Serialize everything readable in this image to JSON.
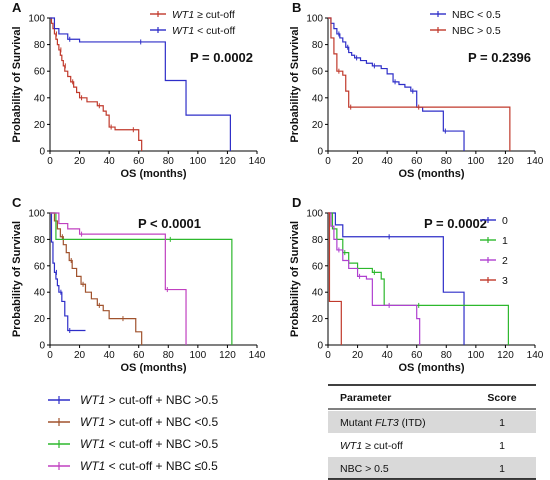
{
  "panels": [
    {
      "label": "A",
      "pvalue": "P = 0.0002",
      "xlabel": "OS (months)",
      "ylabel": "Probability of Survival",
      "xticks": [
        0,
        20,
        40,
        60,
        80,
        100,
        120,
        140
      ],
      "yticks": [
        0,
        20,
        40,
        60,
        80,
        100
      ],
      "legend": [
        {
          "pre": "WT1",
          "post": " ≥ cut-off",
          "color": "#C0392B"
        },
        {
          "pre": "WT1",
          "post": " < cut-off",
          "color": "#2E2EC8"
        }
      ]
    },
    {
      "label": "B",
      "pvalue": "P = 0.2396",
      "xlabel": "OS (months)",
      "ylabel": "Probability of Survival",
      "xticks": [
        0,
        20,
        40,
        60,
        80,
        100,
        120,
        140
      ],
      "yticks": [
        0,
        20,
        40,
        60,
        80,
        100
      ],
      "legend": [
        {
          "pre": "",
          "post": "NBC < 0.5",
          "color": "#2E2EC8"
        },
        {
          "pre": "",
          "post": "NBC > 0.5",
          "color": "#C0392B"
        }
      ]
    },
    {
      "label": "C",
      "pvalue": "P < 0.0001",
      "xlabel": "OS (months)",
      "ylabel": "Probability of Survival",
      "xticks": [
        0,
        20,
        40,
        60,
        80,
        100,
        120,
        140
      ],
      "yticks": [
        0,
        20,
        40,
        60,
        80,
        100
      ]
    },
    {
      "label": "D",
      "pvalue": "P = 0.0002",
      "xlabel": "OS (months)",
      "ylabel": "Probability of Survival",
      "xticks": [
        0,
        20,
        40,
        60,
        80,
        100,
        120,
        140
      ],
      "yticks": [
        0,
        20,
        40,
        60,
        80,
        100
      ],
      "legend": [
        {
          "pre": "",
          "post": "0",
          "color": "#2E2EC8"
        },
        {
          "pre": "",
          "post": "1",
          "color": "#2DB82D"
        },
        {
          "pre": "",
          "post": "2",
          "color": "#B040D0"
        },
        {
          "pre": "",
          "post": "3",
          "color": "#C0392B"
        }
      ]
    }
  ],
  "legend_c": [
    {
      "pre": "WT1",
      "post": " > cut-off + NBC >0.5",
      "color": "#2E2EC8"
    },
    {
      "pre": "WT1",
      "post": " > cut-off + NBC <0.5",
      "color": "#A0522D"
    },
    {
      "pre": "WT1",
      "post": " < cut-off + NBC >0.5",
      "color": "#2DB82D"
    },
    {
      "pre": "WT1",
      "post": " < cut-off + NBC ≤0.5",
      "color": "#C040C0"
    }
  ],
  "score_table": {
    "headers": [
      "Parameter",
      "Score"
    ],
    "rows": [
      {
        "pre": "Mutant ",
        "ital": "FLT3",
        "post": " (ITD)",
        "score": "1"
      },
      {
        "pre": "",
        "ital": "WT1",
        "post": " ≥ cut-off",
        "score": "1"
      },
      {
        "pre": "NBC > 0.5",
        "ital": "",
        "post": "",
        "score": "1"
      }
    ]
  },
  "chart_data": [
    {
      "type": "line",
      "title": "",
      "xlabel": "OS (months)",
      "ylabel": "Probability of Survival",
      "xlim": [
        0,
        140
      ],
      "ylim": [
        0,
        100
      ],
      "series": [
        {
          "name": "WT1 ≥ cut-off",
          "color": "#C0392B",
          "steps": [
            [
              0,
              100
            ],
            [
              1,
              96
            ],
            [
              2,
              92
            ],
            [
              3,
              88
            ],
            [
              4,
              84
            ],
            [
              5,
              80
            ],
            [
              6,
              76
            ],
            [
              7,
              72
            ],
            [
              8,
              68
            ],
            [
              9,
              64
            ],
            [
              10,
              60
            ],
            [
              12,
              56
            ],
            [
              14,
              52
            ],
            [
              16,
              48
            ],
            [
              18,
              44
            ],
            [
              20,
              40
            ],
            [
              25,
              37
            ],
            [
              28,
              37
            ],
            [
              32,
              34
            ],
            [
              36,
              30
            ],
            [
              38,
              27
            ],
            [
              40,
              18
            ],
            [
              44,
              16
            ],
            [
              50,
              16
            ],
            [
              55,
              16
            ],
            [
              60,
              8
            ],
            [
              62,
              0
            ]
          ]
        },
        {
          "name": "WT1 < cut-off",
          "color": "#2E2EC8",
          "steps": [
            [
              0,
              100
            ],
            [
              3,
              92
            ],
            [
              6,
              88
            ],
            [
              12,
              84
            ],
            [
              20,
              82
            ],
            [
              40,
              82
            ],
            [
              60,
              82
            ],
            [
              78,
              53
            ],
            [
              92,
              27
            ],
            [
              122,
              0
            ]
          ]
        }
      ]
    },
    {
      "type": "line",
      "title": "",
      "xlabel": "OS (months)",
      "ylabel": "Probability of Survival",
      "xlim": [
        0,
        140
      ],
      "ylim": [
        0,
        100
      ],
      "series": [
        {
          "name": "NBC < 0.5",
          "color": "#2E2EC8",
          "steps": [
            [
              0,
              100
            ],
            [
              2,
              96
            ],
            [
              4,
              92
            ],
            [
              6,
              88
            ],
            [
              8,
              85
            ],
            [
              10,
              82
            ],
            [
              12,
              78
            ],
            [
              14,
              74
            ],
            [
              16,
              72
            ],
            [
              18,
              70
            ],
            [
              22,
              68
            ],
            [
              26,
              66
            ],
            [
              30,
              64
            ],
            [
              36,
              62
            ],
            [
              40,
              58
            ],
            [
              44,
              52
            ],
            [
              48,
              50
            ],
            [
              52,
              48
            ],
            [
              56,
              45
            ],
            [
              60,
              33
            ],
            [
              64,
              30
            ],
            [
              78,
              15
            ],
            [
              92,
              0
            ]
          ]
        },
        {
          "name": "NBC > 0.5",
          "color": "#C0392B",
          "steps": [
            [
              0,
              100
            ],
            [
              2,
              85
            ],
            [
              4,
              73
            ],
            [
              6,
              60
            ],
            [
              10,
              57
            ],
            [
              12,
              45
            ],
            [
              14,
              33
            ],
            [
              20,
              33
            ],
            [
              40,
              33
            ],
            [
              60,
              33
            ],
            [
              100,
              33
            ],
            [
              123,
              0
            ]
          ]
        }
      ]
    },
    {
      "type": "line",
      "title": "",
      "xlabel": "OS (months)",
      "ylabel": "Probability of Survival",
      "xlim": [
        0,
        140
      ],
      "ylim": [
        0,
        100
      ],
      "series": [
        {
          "name": "WT1 > cut-off + NBC >0.5",
          "color": "#2E2EC8",
          "steps": [
            [
              0,
              100
            ],
            [
              1,
              78
            ],
            [
              2,
              62
            ],
            [
              3,
              55
            ],
            [
              4,
              50
            ],
            [
              5,
              45
            ],
            [
              6,
              40
            ],
            [
              8,
              33
            ],
            [
              10,
              22
            ],
            [
              12,
              11
            ],
            [
              24,
              11
            ]
          ]
        },
        {
          "name": "WT1 > cut-off + NBC <0.5",
          "color": "#A0522D",
          "steps": [
            [
              0,
              100
            ],
            [
              3,
              94
            ],
            [
              5,
              88
            ],
            [
              7,
              82
            ],
            [
              9,
              76
            ],
            [
              11,
              70
            ],
            [
              13,
              64
            ],
            [
              15,
              58
            ],
            [
              18,
              52
            ],
            [
              21,
              46
            ],
            [
              24,
              40
            ],
            [
              28,
              35
            ],
            [
              32,
              30
            ],
            [
              36,
              26
            ],
            [
              40,
              20
            ],
            [
              48,
              20
            ],
            [
              58,
              10
            ],
            [
              62,
              0
            ]
          ]
        },
        {
          "name": "WT1 < cut-off + NBC >0.5",
          "color": "#2DB82D",
          "steps": [
            [
              0,
              100
            ],
            [
              4,
              80
            ],
            [
              40,
              80
            ],
            [
              80,
              80
            ],
            [
              123,
              0
            ]
          ]
        },
        {
          "name": "WT1 < cut-off + NBC ≤0.5",
          "color": "#C040C0",
          "steps": [
            [
              0,
              100
            ],
            [
              6,
              92
            ],
            [
              12,
              88
            ],
            [
              20,
              84
            ],
            [
              40,
              84
            ],
            [
              60,
              84
            ],
            [
              78,
              42
            ],
            [
              92,
              0
            ]
          ]
        }
      ]
    },
    {
      "type": "line",
      "title": "",
      "xlabel": "OS (months)",
      "ylabel": "Probability of Survival",
      "xlim": [
        0,
        140
      ],
      "ylim": [
        0,
        100
      ],
      "series": [
        {
          "name": "0",
          "color": "#2E2EC8",
          "steps": [
            [
              0,
              100
            ],
            [
              5,
              91
            ],
            [
              10,
              82
            ],
            [
              40,
              82
            ],
            [
              60,
              82
            ],
            [
              78,
              40
            ],
            [
              92,
              0
            ]
          ]
        },
        {
          "name": "1",
          "color": "#2DB82D",
          "steps": [
            [
              0,
              100
            ],
            [
              3,
              88
            ],
            [
              6,
              80
            ],
            [
              10,
              70
            ],
            [
              14,
              62
            ],
            [
              20,
              58
            ],
            [
              30,
              55
            ],
            [
              36,
              50
            ],
            [
              38,
              30
            ],
            [
              60,
              30
            ],
            [
              100,
              30
            ],
            [
              122,
              0
            ]
          ]
        },
        {
          "name": "2",
          "color": "#B040D0",
          "steps": [
            [
              0,
              100
            ],
            [
              2,
              90
            ],
            [
              4,
              80
            ],
            [
              6,
              72
            ],
            [
              10,
              64
            ],
            [
              14,
              58
            ],
            [
              20,
              52
            ],
            [
              26,
              50
            ],
            [
              30,
              30
            ],
            [
              40,
              30
            ],
            [
              50,
              30
            ],
            [
              60,
              20
            ],
            [
              62,
              0
            ]
          ]
        },
        {
          "name": "3",
          "color": "#C0392B",
          "steps": [
            [
              0,
              100
            ],
            [
              1,
              33
            ],
            [
              4,
              33
            ],
            [
              9,
              0
            ]
          ]
        }
      ]
    }
  ]
}
